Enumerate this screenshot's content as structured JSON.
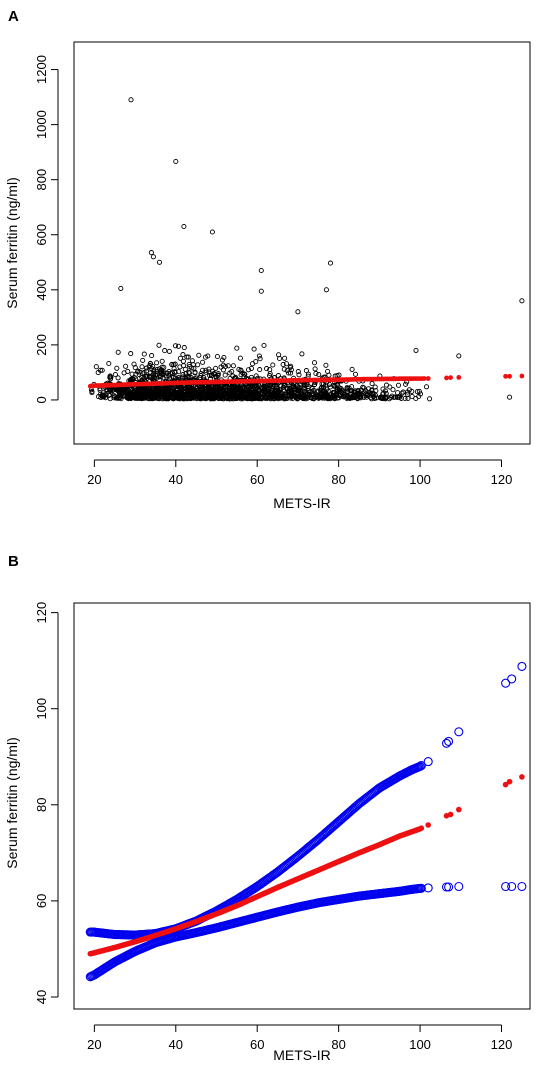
{
  "chart_data": [
    {
      "panel_label": "A",
      "type": "scatter",
      "xlabel": "METS-IR",
      "ylabel": "Serum ferritin (ng/ml)",
      "xlim": [
        15,
        127
      ],
      "ylim": [
        -160,
        1300
      ],
      "xticks": [
        20,
        40,
        60,
        80,
        100,
        120
      ],
      "yticks": [
        0,
        200,
        400,
        600,
        800,
        1000,
        1200
      ],
      "grid": false,
      "series": [
        {
          "style": "open-circle",
          "color": "#000000",
          "notable_points": [
            [
              29,
              1090
            ],
            [
              40,
              866
            ],
            [
              42,
              630
            ],
            [
              49,
              610
            ],
            [
              34,
              535
            ],
            [
              34.5,
              520
            ],
            [
              36,
              500
            ],
            [
              78,
              497
            ],
            [
              26.5,
              405
            ],
            [
              61,
              470
            ],
            [
              125,
              360
            ],
            [
              109.5,
              160
            ],
            [
              122,
              10
            ],
            [
              99,
              180
            ],
            [
              77,
              400
            ],
            [
              61,
              395
            ],
            [
              70,
              320
            ]
          ],
          "cloud": {
            "x_range": [
              19,
              103
            ],
            "x_mode": 33,
            "typical_y_range": [
              0,
              150
            ],
            "max_y_near_mode": 400
          }
        },
        {
          "style": "filled-dot",
          "color": "#ee1111",
          "x": [
            19,
            20,
            25,
            30,
            35,
            40,
            45,
            50,
            55,
            60,
            65,
            70,
            75,
            80,
            85,
            90,
            95,
            100,
            102,
            106.5,
            107.5,
            109.5,
            121,
            122,
            125
          ],
          "y": [
            50,
            52,
            54,
            57,
            59,
            62,
            64,
            65.5,
            67,
            68.5,
            70,
            71.5,
            72.5,
            73.5,
            75,
            76,
            77,
            77.5,
            78,
            80,
            81,
            82,
            86,
            86,
            87
          ]
        }
      ]
    },
    {
      "panel_label": "B",
      "type": "scatter",
      "xlabel": "METS-IR",
      "ylabel": "Serum ferritin (ng/ml)",
      "xlim": [
        15,
        127
      ],
      "ylim": [
        37.5,
        122
      ],
      "xticks": [
        20,
        40,
        60,
        80,
        100,
        120
      ],
      "yticks": [
        40,
        60,
        80,
        100,
        120
      ],
      "grid": false,
      "series": [
        {
          "style": "open-circle",
          "color": "#0000ee",
          "role": "upper",
          "x": [
            19,
            20,
            25,
            30,
            35,
            40,
            45,
            50,
            55,
            60,
            65,
            70,
            75,
            80,
            85,
            90,
            95,
            98,
            100,
            102,
            106.5,
            107,
            109.5,
            121,
            122.5,
            125
          ],
          "y": [
            53.5,
            53.5,
            53,
            52.9,
            53.2,
            54.2,
            55.8,
            57.9,
            60.3,
            63,
            66,
            69.3,
            72.8,
            76.5,
            80.2,
            83.5,
            86,
            87.3,
            88,
            89,
            92.8,
            93.2,
            95.2,
            105.3,
            106.2,
            108.8
          ]
        },
        {
          "style": "filled-dot",
          "color": "#ee1111",
          "role": "fit",
          "x": [
            19,
            20,
            25,
            30,
            35,
            40,
            45,
            50,
            55,
            60,
            65,
            70,
            75,
            80,
            85,
            90,
            95,
            98,
            100,
            102,
            106.5,
            107.5,
            109.5,
            121,
            122,
            125
          ],
          "y": [
            49,
            49.2,
            50.3,
            51.5,
            52.8,
            54.2,
            55.7,
            57.3,
            59,
            60.9,
            62.8,
            64.6,
            66.4,
            68.2,
            70,
            71.7,
            73.5,
            74.4,
            75,
            75.8,
            77.7,
            78,
            79,
            84.2,
            84.8,
            85.8
          ]
        },
        {
          "style": "open-circle",
          "color": "#0000ee",
          "role": "lower",
          "x": [
            19,
            20,
            25,
            30,
            35,
            40,
            45,
            50,
            55,
            60,
            65,
            70,
            75,
            80,
            85,
            90,
            95,
            98,
            100,
            102,
            106.5,
            107,
            109.5,
            121,
            122.5,
            125
          ],
          "y": [
            44.2,
            44.6,
            47.3,
            49.5,
            51.3,
            52.5,
            53.4,
            54.4,
            55.5,
            56.6,
            57.7,
            58.7,
            59.6,
            60.3,
            61,
            61.5,
            62,
            62.4,
            62.6,
            62.7,
            62.9,
            62.9,
            63,
            63,
            63,
            63
          ]
        }
      ]
    }
  ]
}
